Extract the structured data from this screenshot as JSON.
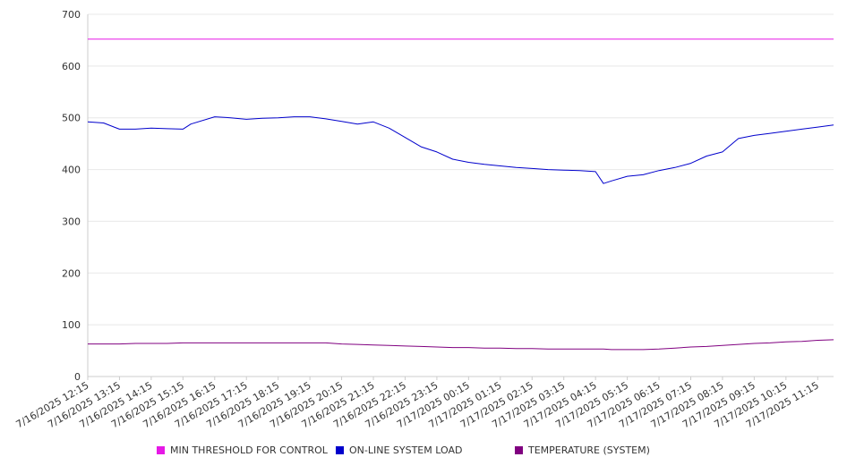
{
  "chart_data": {
    "type": "line",
    "title": "",
    "xlabel": "",
    "ylabel": "",
    "ylim": [
      0,
      700
    ],
    "yticks": [
      0,
      100,
      200,
      300,
      400,
      500,
      600,
      700
    ],
    "grid": true,
    "legend_position": "bottom",
    "xticks": [
      "7/16/2025 12:15",
      "7/16/2025 13:15",
      "7/16/2025 14:15",
      "7/16/2025 15:15",
      "7/16/2025 16:15",
      "7/16/2025 17:15",
      "7/16/2025 18:15",
      "7/16/2025 19:15",
      "7/16/2025 20:15",
      "7/16/2025 21:15",
      "7/16/2025 22:15",
      "7/16/2025 23:15",
      "7/17/2025 00:15",
      "7/17/2025 01:15",
      "7/17/2025 02:15",
      "7/17/2025 03:15",
      "7/17/2025 04:15",
      "7/17/2025 05:15",
      "7/17/2025 06:15",
      "7/17/2025 07:15",
      "7/17/2025 08:15",
      "7/17/2025 09:15",
      "7/17/2025 10:15",
      "7/17/2025 11:15"
    ],
    "x": [
      "7/16/2025 12:15",
      "7/16/2025 12:45",
      "7/16/2025 13:15",
      "7/16/2025 13:45",
      "7/16/2025 14:15",
      "7/16/2025 14:45",
      "7/16/2025 15:15",
      "7/16/2025 15:30",
      "7/16/2025 16:15",
      "7/16/2025 16:45",
      "7/16/2025 17:15",
      "7/16/2025 17:45",
      "7/16/2025 18:15",
      "7/16/2025 18:45",
      "7/16/2025 19:15",
      "7/16/2025 19:45",
      "7/16/2025 20:15",
      "7/16/2025 20:45",
      "7/16/2025 21:15",
      "7/16/2025 21:45",
      "7/16/2025 22:15",
      "7/16/2025 22:45",
      "7/16/2025 23:15",
      "7/16/2025 23:45",
      "7/17/2025 00:15",
      "7/17/2025 00:45",
      "7/17/2025 01:15",
      "7/17/2025 01:45",
      "7/17/2025 02:15",
      "7/17/2025 02:45",
      "7/17/2025 03:15",
      "7/17/2025 03:45",
      "7/17/2025 04:15",
      "7/17/2025 04:30",
      "7/17/2025 04:45",
      "7/17/2025 05:15",
      "7/17/2025 05:45",
      "7/17/2025 06:15",
      "7/17/2025 06:45",
      "7/17/2025 07:15",
      "7/17/2025 07:45",
      "7/17/2025 08:15",
      "7/17/2025 08:45",
      "7/17/2025 09:15",
      "7/17/2025 09:45",
      "7/17/2025 10:15",
      "7/17/2025 10:45",
      "7/17/2025 11:15",
      "7/17/2025 11:45"
    ],
    "series": [
      {
        "name": "MIN THRESHOLD FOR CONTROL",
        "color": "#e619e6",
        "values": [
          652,
          652,
          652,
          652,
          652,
          652,
          652,
          652,
          652,
          652,
          652,
          652,
          652,
          652,
          652,
          652,
          652,
          652,
          652,
          652,
          652,
          652,
          652,
          652,
          652,
          652,
          652,
          652,
          652,
          652,
          652,
          652,
          652,
          652,
          652,
          652,
          652,
          652,
          652,
          652,
          652,
          652,
          652,
          652,
          652,
          652,
          652,
          652,
          652
        ]
      },
      {
        "name": "ON-LINE SYSTEM LOAD",
        "color": "#0000cc",
        "values": [
          492,
          490,
          478,
          478,
          480,
          479,
          478,
          488,
          502,
          500,
          497,
          499,
          500,
          502,
          502,
          498,
          493,
          488,
          492,
          480,
          462,
          444,
          434,
          420,
          414,
          410,
          407,
          404,
          402,
          400,
          399,
          398,
          396,
          373,
          378,
          387,
          390,
          398,
          404,
          412,
          426,
          434,
          460,
          466,
          470,
          474,
          478,
          482,
          486
        ]
      },
      {
        "name": "TEMPERATURE (SYSTEM)",
        "color": "#800080",
        "values": [
          63,
          63,
          63,
          64,
          64,
          64,
          65,
          65,
          65,
          65,
          65,
          65,
          65,
          65,
          65,
          65,
          63,
          62,
          61,
          60,
          59,
          58,
          57,
          56,
          56,
          55,
          55,
          54,
          54,
          53,
          53,
          53,
          53,
          53,
          52,
          52,
          52,
          53,
          55,
          57,
          58,
          60,
          62,
          64,
          65,
          67,
          68,
          70,
          71
        ]
      }
    ]
  }
}
